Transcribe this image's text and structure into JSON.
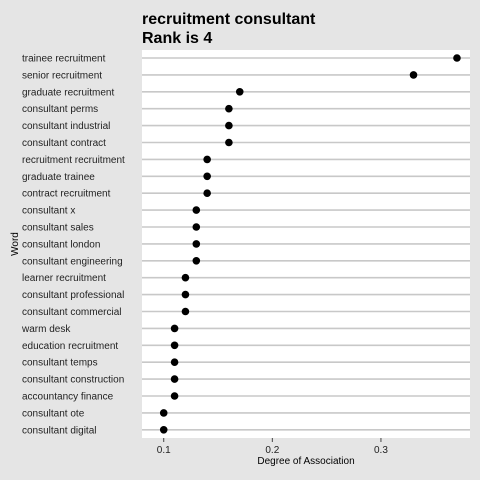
{
  "chart_data": {
    "type": "scatter",
    "title": "recruitment consultant",
    "subtitle": "Rank is 4",
    "xlabel": "Degree of Association",
    "ylabel": "Word",
    "xlim": [
      0.08,
      0.382
    ],
    "xticks": [
      0.1,
      0.2,
      0.3
    ],
    "xtick_labels": [
      "0.1",
      "0.2",
      "0.3"
    ],
    "grid": "horizontal",
    "categories": [
      "trainee recruitment",
      "senior recruitment",
      "graduate recruitment",
      "consultant perms",
      "consultant industrial",
      "consultant contract",
      "recruitment recruitment",
      "graduate trainee",
      "contract recruitment",
      "consultant x",
      "consultant sales",
      "consultant london",
      "consultant engineering",
      "learner recruitment",
      "consultant professional",
      "consultant commercial",
      "warm desk",
      "education recruitment",
      "consultant temps",
      "consultant construction",
      "accountancy finance",
      "consultant ote",
      "consultant digital"
    ],
    "values": [
      0.37,
      0.33,
      0.17,
      0.16,
      0.16,
      0.16,
      0.14,
      0.14,
      0.14,
      0.13,
      0.13,
      0.13,
      0.13,
      0.12,
      0.12,
      0.12,
      0.11,
      0.11,
      0.11,
      0.11,
      0.11,
      0.1,
      0.1
    ],
    "colors": {
      "background": "#e5e5e5",
      "panel": "#ffffff",
      "gridline": "#c8c8c8",
      "point": "#000000"
    }
  }
}
